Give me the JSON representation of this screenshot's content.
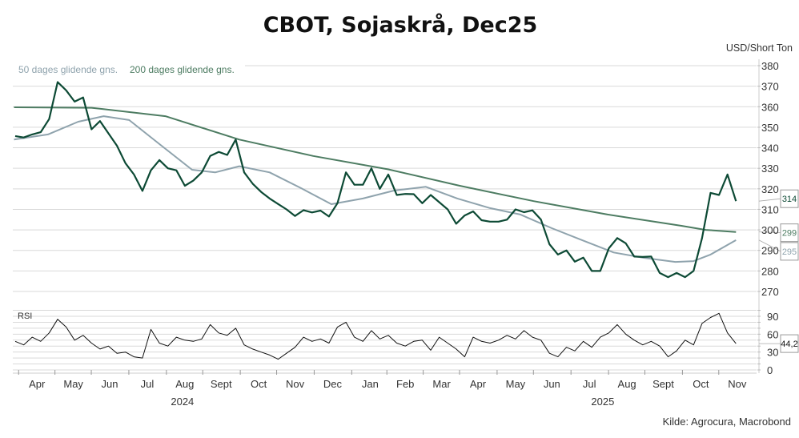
{
  "chart_data": [
    {
      "type": "line",
      "title": "CBOT, Sojaskrå, Dec25",
      "ylabel": "USD/Short Ton",
      "ylim": [
        265,
        385
      ],
      "yticks": [
        270,
        280,
        290,
        300,
        310,
        320,
        330,
        340,
        350,
        360,
        370,
        380
      ],
      "xlim": [
        "2024-03-27",
        "2025-12-01"
      ],
      "grid": true,
      "legend": "top-left",
      "x": [
        "2024-03-29",
        "2024-04-05",
        "2024-04-12",
        "2024-04-19",
        "2024-04-26",
        "2024-05-03",
        "2024-05-10",
        "2024-05-17",
        "2024-05-24",
        "2024-05-31",
        "2024-06-07",
        "2024-06-14",
        "2024-06-21",
        "2024-06-28",
        "2024-07-05",
        "2024-07-12",
        "2024-07-19",
        "2024-07-26",
        "2024-08-02",
        "2024-08-09",
        "2024-08-16",
        "2024-08-23",
        "2024-08-30",
        "2024-09-06",
        "2024-09-13",
        "2024-09-20",
        "2024-09-27",
        "2024-10-04",
        "2024-10-11",
        "2024-10-18",
        "2024-10-25",
        "2024-11-01",
        "2024-11-08",
        "2024-11-15",
        "2024-11-22",
        "2024-11-29",
        "2024-12-06",
        "2024-12-13",
        "2024-12-20",
        "2024-12-27",
        "2025-01-03",
        "2025-01-10",
        "2025-01-17",
        "2025-01-24",
        "2025-01-31",
        "2025-02-07",
        "2025-02-14",
        "2025-02-21",
        "2025-02-28",
        "2025-03-07",
        "2025-03-14",
        "2025-03-21",
        "2025-03-28",
        "2025-04-04",
        "2025-04-11",
        "2025-04-18",
        "2025-04-25",
        "2025-05-02",
        "2025-05-09",
        "2025-05-16",
        "2025-05-23",
        "2025-05-30",
        "2025-06-06",
        "2025-06-13",
        "2025-06-20",
        "2025-06-27",
        "2025-07-04",
        "2025-07-11",
        "2025-07-18",
        "2025-07-25",
        "2025-08-01",
        "2025-08-08",
        "2025-08-15",
        "2025-08-22",
        "2025-08-29",
        "2025-09-05",
        "2025-09-12",
        "2025-09-19",
        "2025-09-26",
        "2025-10-03",
        "2025-10-10",
        "2025-10-17",
        "2025-10-24",
        "2025-10-31",
        "2025-11-07",
        "2025-11-14"
      ],
      "series": [
        {
          "values": [
            345.7,
            345,
            346.5,
            347.6,
            354,
            372,
            368,
            362.5,
            364.5,
            349,
            353,
            347,
            341,
            332.5,
            327,
            319,
            329,
            334,
            330,
            329,
            321.5,
            324,
            328,
            336,
            338,
            336.5,
            344,
            328,
            322.5,
            318.5,
            315.3,
            312.6,
            310,
            306.8,
            309.6,
            308.5,
            309.4,
            306.5,
            313,
            328,
            322,
            322,
            330,
            320,
            327,
            317,
            317.5,
            317.4,
            313,
            317,
            313.5,
            310,
            303,
            307,
            309,
            304.7,
            304,
            304,
            305,
            310,
            308.6,
            309.5,
            305,
            293,
            288,
            290,
            284.5,
            286.5,
            280,
            280,
            291,
            296,
            293.5,
            287,
            286.8,
            287,
            279,
            277,
            279,
            277,
            280,
            296,
            318,
            317,
            327,
            314
          ],
          "color": "#0d4a35",
          "last_label": "314"
        },
        {
          "name": "200 dages glidende gns.",
          "x": [
            "2024-03-28",
            "2024-05-31",
            "2024-07-31",
            "2024-09-30",
            "2024-11-30",
            "2025-01-31",
            "2025-03-31",
            "2025-05-31",
            "2025-07-31",
            "2025-09-30",
            "2025-10-20",
            "2025-11-14"
          ],
          "values": [
            359.7,
            359.5,
            355.4,
            344,
            336,
            329.5,
            321.5,
            314,
            307.5,
            302,
            300,
            299
          ],
          "color": "#4d7c62",
          "last_label": "299"
        },
        {
          "name": "50 dages glidende gns.",
          "x": [
            "2024-03-28",
            "2024-04-25",
            "2024-05-20",
            "2024-06-10",
            "2024-07-01",
            "2024-07-26",
            "2024-08-22",
            "2024-09-10",
            "2024-09-30",
            "2024-10-25",
            "2024-11-20",
            "2024-12-15",
            "2025-01-10",
            "2025-02-05",
            "2025-03-03",
            "2025-03-29",
            "2025-04-25",
            "2025-05-20",
            "2025-06-15",
            "2025-07-10",
            "2025-08-05",
            "2025-08-30",
            "2025-09-25",
            "2025-10-10",
            "2025-10-24",
            "2025-11-14"
          ],
          "values": [
            344,
            346.5,
            352.7,
            355.4,
            353.5,
            341.8,
            329.3,
            328,
            331,
            328,
            320.3,
            312.5,
            315.3,
            319.2,
            321,
            315.3,
            310.6,
            307.5,
            300.8,
            295,
            289,
            286.4,
            284.4,
            284.8,
            288,
            295
          ],
          "color": "#8fa3ad",
          "last_label": "295"
        }
      ]
    },
    {
      "type": "line",
      "title": "RSI",
      "ylim": [
        0,
        100
      ],
      "yticks": [
        0,
        30,
        60,
        90
      ],
      "series": [
        {
          "values": [
            48,
            42,
            55,
            48,
            62,
            85,
            72,
            50,
            58,
            45,
            35,
            40,
            28,
            30,
            22,
            20,
            68,
            45,
            40,
            55,
            50,
            48,
            52,
            76,
            62,
            58,
            70,
            42,
            35,
            30,
            25,
            18,
            28,
            38,
            55,
            48,
            52,
            45,
            72,
            80,
            55,
            48,
            66,
            52,
            58,
            45,
            40,
            48,
            50,
            33,
            55,
            45,
            35,
            22,
            55,
            48,
            45,
            50,
            58,
            52,
            66,
            55,
            50,
            28,
            22,
            38,
            32,
            48,
            38,
            55,
            62,
            76,
            60,
            50,
            42,
            48,
            40,
            22,
            32,
            50,
            42,
            78,
            88,
            95,
            62,
            44.2
          ],
          "color": "#111111",
          "last_label": "44,2"
        }
      ]
    }
  ],
  "x_axis": {
    "months": [
      {
        "label": "Apr",
        "date": "2024-04-16"
      },
      {
        "label": "May",
        "date": "2024-05-16"
      },
      {
        "label": "Jun",
        "date": "2024-06-15"
      },
      {
        "label": "Jul",
        "date": "2024-07-16"
      },
      {
        "label": "Aug",
        "date": "2024-08-16"
      },
      {
        "label": "Sept",
        "date": "2024-09-15"
      },
      {
        "label": "Oct",
        "date": "2024-10-16"
      },
      {
        "label": "Nov",
        "date": "2024-11-15"
      },
      {
        "label": "Dec",
        "date": "2024-12-16"
      },
      {
        "label": "Jan",
        "date": "2025-01-16"
      },
      {
        "label": "Feb",
        "date": "2025-02-14"
      },
      {
        "label": "Mar",
        "date": "2025-03-16"
      },
      {
        "label": "Apr",
        "date": "2025-04-15"
      },
      {
        "label": "May",
        "date": "2025-05-16"
      },
      {
        "label": "Jun",
        "date": "2025-06-15"
      },
      {
        "label": "Jul",
        "date": "2025-07-16"
      },
      {
        "label": "Aug",
        "date": "2025-08-16"
      },
      {
        "label": "Sept",
        "date": "2025-09-15"
      },
      {
        "label": "Oct",
        "date": "2025-10-16"
      },
      {
        "label": "Nov",
        "date": "2025-11-15"
      }
    ],
    "years": [
      {
        "label": "2024",
        "date": "2024-08-14"
      },
      {
        "label": "2025",
        "date": "2025-07-27"
      }
    ]
  },
  "source": "Kilde: Agrocura, Macrobond"
}
